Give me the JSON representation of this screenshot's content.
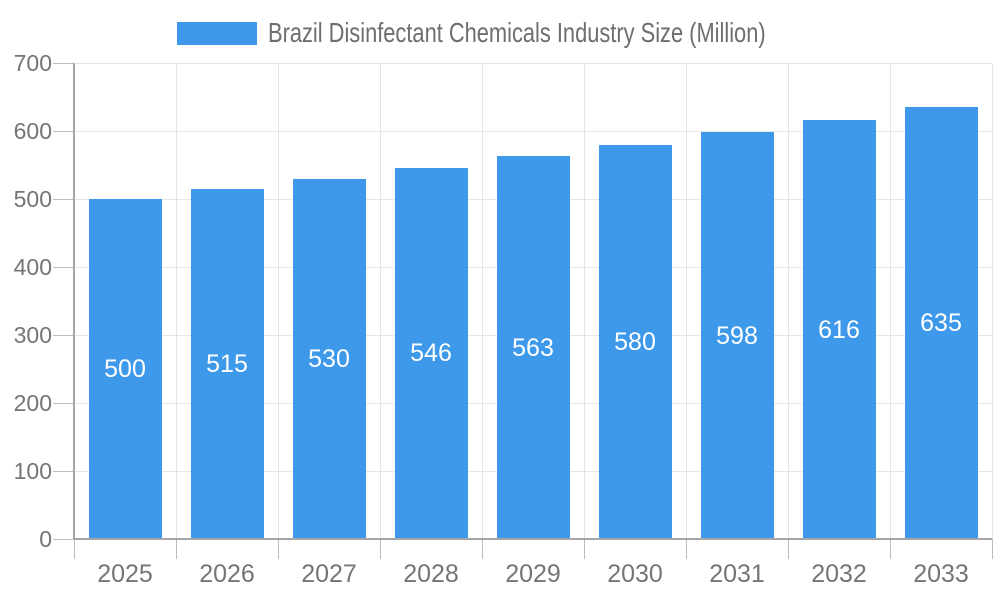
{
  "chart_data": {
    "type": "bar",
    "title": "Brazil Disinfectant Chemicals Industry Size (Million)",
    "categories": [
      "2025",
      "2026",
      "2027",
      "2028",
      "2029",
      "2030",
      "2031",
      "2032",
      "2033"
    ],
    "values": [
      500,
      515,
      530,
      546,
      563,
      580,
      598,
      616,
      635
    ],
    "xlabel": "",
    "ylabel": "",
    "ylim": [
      0,
      700
    ],
    "yticks": [
      0,
      100,
      200,
      300,
      400,
      500,
      600,
      700
    ],
    "grid": true,
    "legend_position": "top-center",
    "bar_value_labels_shown": true,
    "colors": {
      "bar": "#3E99EB",
      "grid_line": "#E6E6E6",
      "axis_line": "#A6A6A6",
      "tick_line": "#BDBDBD",
      "axis_text": "#757575",
      "title_text": "#6E6E6E",
      "bar_label_text": "#FFFFFF",
      "background": "#FFFFFF"
    }
  }
}
